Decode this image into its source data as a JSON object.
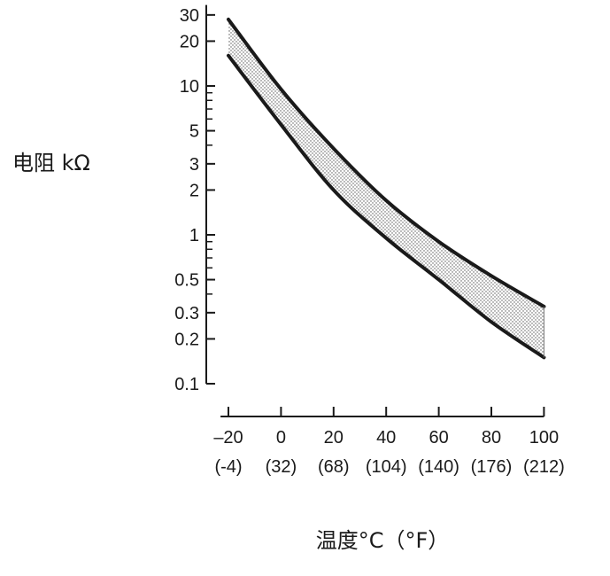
{
  "chart_data": {
    "type": "area",
    "title": "",
    "ylabel": "电阻 kΩ",
    "xlabel": "温度°C（°F）",
    "y_scale": "log",
    "ylim": [
      0.1,
      35
    ],
    "xlim": [
      -23,
      100
    ],
    "y_ticks": [
      {
        "value": 30,
        "label": "30"
      },
      {
        "value": 20,
        "label": "20"
      },
      {
        "value": 10,
        "label": "10"
      },
      {
        "value": 5,
        "label": "5"
      },
      {
        "value": 3,
        "label": "3"
      },
      {
        "value": 2,
        "label": "2"
      },
      {
        "value": 1,
        "label": "1"
      },
      {
        "value": 0.5,
        "label": "0.5"
      },
      {
        "value": 0.3,
        "label": "0.3"
      },
      {
        "value": 0.2,
        "label": "0.2"
      },
      {
        "value": 0.1,
        "label": "0.1"
      }
    ],
    "y_minor_ticks": [
      30,
      20,
      10,
      9,
      8,
      7,
      6,
      5,
      4,
      3,
      2,
      1,
      0.9,
      0.8,
      0.7,
      0.6,
      0.5,
      0.4,
      0.3,
      0.2,
      0.1
    ],
    "x_ticks": [
      {
        "value": -20,
        "label": "–20",
        "label_f": "(-4)"
      },
      {
        "value": 0,
        "label": "0",
        "label_f": "(32)"
      },
      {
        "value": 20,
        "label": "20",
        "label_f": "(68)"
      },
      {
        "value": 40,
        "label": "40",
        "label_f": "(104)"
      },
      {
        "value": 60,
        "label": "60",
        "label_f": "(140)"
      },
      {
        "value": 80,
        "label": "80",
        "label_f": "(176)"
      },
      {
        "value": 100,
        "label": "100",
        "label_f": "(212)"
      }
    ],
    "series": [
      {
        "x": [
          -20,
          0,
          20,
          40,
          60,
          80,
          100
        ],
        "values": [
          28,
          9.5,
          3.8,
          1.7,
          0.9,
          0.53,
          0.33
        ]
      },
      {
        "x": [
          -20,
          0,
          20,
          40,
          60,
          80,
          100
        ],
        "values": [
          16,
          5.5,
          2.0,
          0.95,
          0.5,
          0.26,
          0.15
        ]
      }
    ],
    "band_fill": "dotted",
    "grid": false,
    "legend": "none",
    "line_color": "#1a1a1a"
  }
}
